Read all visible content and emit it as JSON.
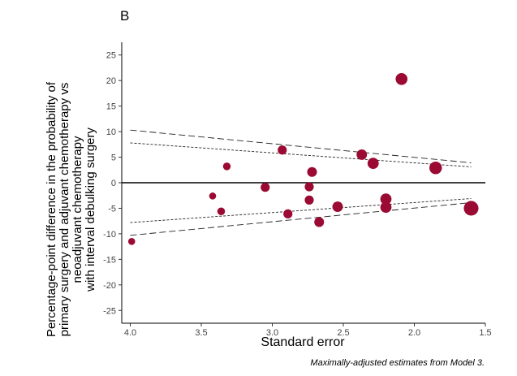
{
  "panel_label": "B",
  "caption": "Maximally-adjusted estimates from Model 3.",
  "chart_data": {
    "type": "scatter",
    "title": "",
    "xlabel": "Standard error",
    "ylabel_lines": [
      "Percentage-point difference in the probability of",
      "primary surgery and adjuvant chemotherapy vs",
      "neoadjuvant chemotherapy",
      "with interval debulking surgery"
    ],
    "x_reversed": true,
    "xlim": [
      4.06,
      1.5
    ],
    "ylim": [
      -27.5,
      27.5
    ],
    "x_ticks": [
      4.0,
      3.5,
      3.0,
      2.5,
      2.0,
      1.5
    ],
    "x_tick_labels": [
      "4.0",
      "3.5",
      "3.0",
      "2.5",
      "2.0",
      "1.5"
    ],
    "y_ticks": [
      25,
      20,
      15,
      10,
      5,
      0,
      -5,
      -10,
      -15,
      -20,
      -25
    ],
    "y_tick_labels": [
      "25",
      "20",
      "15",
      "10",
      "5",
      "0",
      "-5",
      "-10",
      "-15",
      "-20",
      "-25"
    ],
    "grid": false,
    "zero_line": 0,
    "point_color": "#9b0a32",
    "points": [
      {
        "x": 3.99,
        "y": -11.5,
        "size": 1.0
      },
      {
        "x": 3.42,
        "y": -2.6,
        "size": 1.0
      },
      {
        "x": 3.36,
        "y": -5.6,
        "size": 1.1
      },
      {
        "x": 3.32,
        "y": 3.2,
        "size": 1.1
      },
      {
        "x": 3.05,
        "y": -0.9,
        "size": 1.3
      },
      {
        "x": 2.93,
        "y": 6.4,
        "size": 1.3
      },
      {
        "x": 2.89,
        "y": -6.1,
        "size": 1.3
      },
      {
        "x": 2.74,
        "y": -0.8,
        "size": 1.3
      },
      {
        "x": 2.74,
        "y": -3.4,
        "size": 1.3
      },
      {
        "x": 2.72,
        "y": 2.1,
        "size": 1.4
      },
      {
        "x": 2.67,
        "y": -7.7,
        "size": 1.4
      },
      {
        "x": 2.54,
        "y": -4.7,
        "size": 1.5
      },
      {
        "x": 2.37,
        "y": 5.5,
        "size": 1.5
      },
      {
        "x": 2.29,
        "y": 3.8,
        "size": 1.6
      },
      {
        "x": 2.2,
        "y": -3.2,
        "size": 1.6
      },
      {
        "x": 2.2,
        "y": -4.8,
        "size": 1.6
      },
      {
        "x": 2.09,
        "y": 20.3,
        "size": 1.7
      },
      {
        "x": 1.85,
        "y": 2.9,
        "size": 1.8
      },
      {
        "x": 1.6,
        "y": -5.0,
        "size": 2.1
      }
    ],
    "funnel_lines": [
      {
        "style": "long-dash",
        "points": [
          [
            4.0,
            10.3
          ],
          [
            1.6,
            3.9
          ]
        ]
      },
      {
        "style": "short-dash",
        "points": [
          [
            4.0,
            7.8
          ],
          [
            1.6,
            3.1
          ]
        ]
      },
      {
        "style": "short-dash",
        "points": [
          [
            4.0,
            -7.8
          ],
          [
            1.6,
            -3.1
          ]
        ]
      },
      {
        "style": "long-dash",
        "points": [
          [
            4.0,
            -10.3
          ],
          [
            1.6,
            -3.9
          ]
        ]
      }
    ]
  }
}
